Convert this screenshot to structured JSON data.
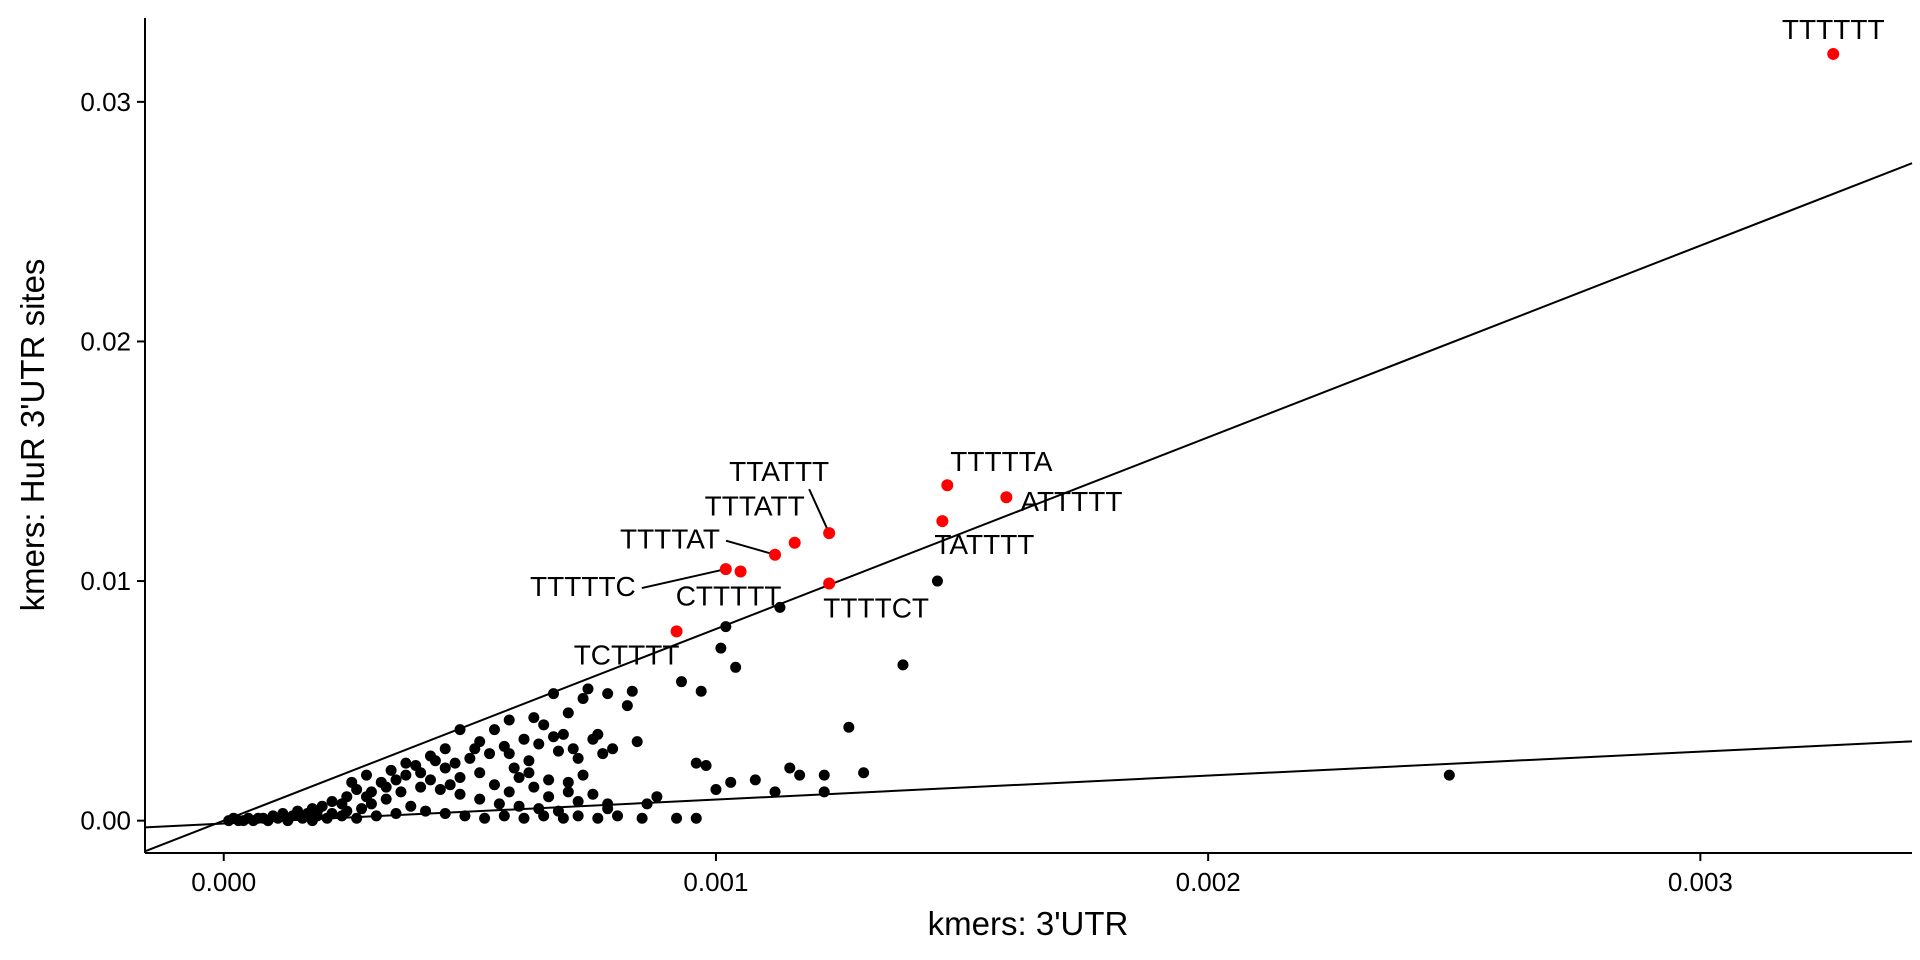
{
  "chart_data": {
    "type": "scatter",
    "title": "",
    "xlabel": "kmers: 3'UTR",
    "ylabel": "kmers: HuR 3'UTR sites",
    "xlim": [
      -0.00016,
      0.00343
    ],
    "ylim": [
      -0.00135,
      0.0335
    ],
    "x_ticks": [
      0.0,
      0.001,
      0.002,
      0.003
    ],
    "x_tick_labels": [
      "0.000",
      "0.001",
      "0.002",
      "0.003"
    ],
    "y_ticks": [
      0.0,
      0.01,
      0.02,
      0.03
    ],
    "y_tick_labels": [
      "0.00",
      "0.01",
      "0.02",
      "0.03"
    ],
    "grid": false,
    "colors": {
      "highlight": "#ff0000",
      "normal": "#000000",
      "line": "#000000"
    },
    "reference_lines": [
      {
        "name": "steep-fit",
        "slope": 8.0,
        "intercept": 0.0
      },
      {
        "name": "shallow-fit",
        "slope": 1.0,
        "intercept": -0.00012
      }
    ],
    "labeled_points": [
      {
        "label": "TTTTTT",
        "x": 0.00327,
        "y": 0.032
      },
      {
        "label": "TTTTTA",
        "x": 0.00147,
        "y": 0.014
      },
      {
        "label": "ATTTTT",
        "x": 0.00159,
        "y": 0.0135
      },
      {
        "label": "TATTTT",
        "x": 0.00146,
        "y": 0.0125
      },
      {
        "label": "TTATTT",
        "x": 0.00123,
        "y": 0.012
      },
      {
        "label": "TTTATT",
        "x": 0.00116,
        "y": 0.0116
      },
      {
        "label": "TTTTAT",
        "x": 0.00112,
        "y": 0.0111
      },
      {
        "label": "TTTTTC",
        "x": 0.00102,
        "y": 0.0105
      },
      {
        "label": "CTTTTT",
        "x": 0.00105,
        "y": 0.0104
      },
      {
        "label": "TTTTCT",
        "x": 0.00123,
        "y": 0.0099
      },
      {
        "label": "TCTTTT",
        "x": 0.00092,
        "y": 0.0079
      }
    ],
    "other_points": [
      [
        0.00145,
        0.01
      ],
      [
        0.00102,
        0.0081
      ],
      [
        0.00113,
        0.0089
      ],
      [
        0.00101,
        0.0072
      ],
      [
        0.00104,
        0.0064
      ],
      [
        0.00138,
        0.0065
      ],
      [
        0.00093,
        0.0058
      ],
      [
        0.00097,
        0.0054
      ],
      [
        0.00249,
        0.0019
      ],
      [
        0.00127,
        0.0039
      ],
      [
        0.0013,
        0.002
      ],
      [
        0.00115,
        0.0022
      ],
      [
        0.00117,
        0.0019
      ],
      [
        0.00122,
        0.0019
      ],
      [
        0.00112,
        0.0012
      ],
      [
        0.00096,
        0.0024
      ],
      [
        0.00098,
        0.0023
      ],
      [
        0.00108,
        0.0017
      ],
      [
        0.00103,
        0.0016
      ],
      [
        0.00122,
        0.0012
      ],
      [
        0.001,
        0.0013
      ],
      [
        0.00088,
        0.001
      ],
      [
        0.00086,
        0.0007
      ],
      [
        0.00092,
        0.0001
      ],
      [
        0.00096,
        0.0001
      ],
      [
        0.00085,
        0.0001
      ],
      [
        0.00078,
        0.0005
      ],
      [
        0.00083,
        0.0054
      ],
      [
        0.00078,
        0.0053
      ],
      [
        0.00073,
        0.0051
      ],
      [
        0.00082,
        0.0048
      ],
      [
        0.00074,
        0.0055
      ],
      [
        0.0007,
        0.0045
      ],
      [
        0.00067,
        0.0053
      ],
      [
        0.00063,
        0.0043
      ],
      [
        0.00065,
        0.004
      ],
      [
        0.00069,
        0.0036
      ],
      [
        0.00075,
        0.0034
      ],
      [
        0.00084,
        0.0033
      ],
      [
        0.00058,
        0.0042
      ],
      [
        0.00061,
        0.0034
      ],
      [
        0.00055,
        0.0038
      ],
      [
        0.00048,
        0.0038
      ],
      [
        0.00052,
        0.0033
      ],
      [
        0.00068,
        0.0029
      ],
      [
        0.00072,
        0.0026
      ],
      [
        0.00077,
        0.0028
      ],
      [
        0.00062,
        0.0025
      ],
      [
        0.00058,
        0.0028
      ],
      [
        0.00045,
        0.003
      ],
      [
        0.0005,
        0.0026
      ],
      [
        0.00042,
        0.0027
      ],
      [
        0.00037,
        0.0024
      ],
      [
        0.0004,
        0.002
      ],
      [
        0.00035,
        0.0017
      ],
      [
        0.00032,
        0.0016
      ],
      [
        0.0003,
        0.0012
      ],
      [
        0.00027,
        0.0013
      ],
      [
        0.00025,
        0.001
      ],
      [
        0.00022,
        0.0008
      ],
      [
        0.0002,
        0.0006
      ],
      [
        0.00018,
        0.0005
      ],
      [
        0.00015,
        0.0004
      ],
      [
        0.00012,
        0.0003
      ],
      [
        0.0001,
        0.0002
      ],
      [
        8e-05,
        0.0001
      ],
      [
        5e-05,
        0.0001
      ],
      [
        3e-05,
        0.0
      ],
      [
        1e-05,
        0.0
      ],
      [
        2e-05,
        0.0001
      ],
      [
        0.00045,
        0.0022
      ],
      [
        0.00048,
        0.0018
      ],
      [
        0.00052,
        0.002
      ],
      [
        0.00055,
        0.0015
      ],
      [
        0.00058,
        0.0012
      ],
      [
        0.0006,
        0.0018
      ],
      [
        0.00063,
        0.0014
      ],
      [
        0.00066,
        0.001
      ],
      [
        0.0007,
        0.0012
      ],
      [
        0.00072,
        0.0008
      ],
      [
        0.00075,
        0.0011
      ],
      [
        0.00078,
        0.0007
      ],
      [
        0.0008,
        0.0002
      ],
      [
        0.00076,
        0.0001
      ],
      [
        0.00072,
        0.0002
      ],
      [
        0.00068,
        0.0004
      ],
      [
        0.00064,
        0.0005
      ],
      [
        0.0006,
        0.0006
      ],
      [
        0.00056,
        0.0007
      ],
      [
        0.00052,
        0.0009
      ],
      [
        0.00048,
        0.0011
      ],
      [
        0.00044,
        0.0013
      ],
      [
        0.0004,
        0.0014
      ],
      [
        0.00036,
        0.0012
      ],
      [
        0.00033,
        0.0009
      ],
      [
        0.0003,
        0.0007
      ],
      [
        0.00028,
        0.0005
      ],
      [
        0.00025,
        0.0004
      ],
      [
        0.00022,
        0.0003
      ],
      [
        0.00019,
        0.0002
      ],
      [
        0.00016,
        0.0001
      ],
      [
        0.00014,
        0.0002
      ],
      [
        0.00011,
        0.0001
      ],
      [
        9e-05,
        0.0
      ],
      [
        7e-05,
        0.0001
      ],
      [
        0.00038,
        0.0006
      ],
      [
        0.00041,
        0.0004
      ],
      [
        0.00045,
        0.0003
      ],
      [
        0.00049,
        0.0002
      ],
      [
        0.00053,
        0.0001
      ],
      [
        0.00057,
        0.0002
      ],
      [
        0.00061,
        0.0001
      ],
      [
        0.00065,
        0.0002
      ],
      [
        0.00069,
        0.0001
      ],
      [
        0.00035,
        0.0003
      ],
      [
        0.00031,
        0.0002
      ],
      [
        0.00027,
        0.0001
      ],
      [
        0.00024,
        0.0002
      ],
      [
        0.00021,
        0.0001
      ],
      [
        0.00018,
        0.0
      ],
      [
        0.00013,
        0.0
      ],
      [
        6e-05,
        0.0
      ],
      [
        4e-05,
        0.0
      ],
      [
        0.00026,
        0.0016
      ],
      [
        0.00029,
        0.0019
      ],
      [
        0.00034,
        0.0021
      ],
      [
        0.00039,
        0.0023
      ],
      [
        0.00043,
        0.0025
      ],
      [
        0.00047,
        0.0024
      ],
      [
        0.00051,
        0.003
      ],
      [
        0.00054,
        0.0028
      ],
      [
        0.00057,
        0.0031
      ],
      [
        0.00064,
        0.0032
      ],
      [
        0.00067,
        0.0035
      ],
      [
        0.00071,
        0.003
      ],
      [
        0.00079,
        0.003
      ],
      [
        0.00076,
        0.0036
      ],
      [
        0.00059,
        0.0022
      ],
      [
        0.00062,
        0.002
      ],
      [
        0.00066,
        0.0017
      ],
      [
        0.0007,
        0.0016
      ],
      [
        0.00073,
        0.0019
      ],
      [
        0.00046,
        0.0015
      ],
      [
        0.00042,
        0.0017
      ],
      [
        0.00037,
        0.0019
      ],
      [
        0.00033,
        0.0014
      ],
      [
        0.00029,
        0.001
      ],
      [
        0.00024,
        0.0007
      ],
      [
        0.00019,
        0.0004
      ],
      [
        0.00017,
        0.0003
      ]
    ]
  }
}
